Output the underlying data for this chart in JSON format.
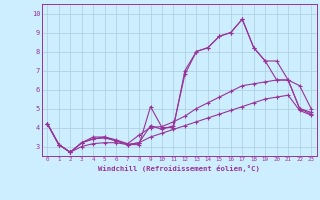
{
  "xlabel": "Windchill (Refroidissement éolien,°C)",
  "background_color": "#cceeff",
  "grid_color": "#aaccdd",
  "line_color": "#993399",
  "xlim": [
    -0.5,
    23.5
  ],
  "ylim": [
    2.5,
    10.5
  ],
  "xticks": [
    0,
    1,
    2,
    3,
    4,
    5,
    6,
    7,
    8,
    9,
    10,
    11,
    12,
    13,
    14,
    15,
    16,
    17,
    18,
    19,
    20,
    21,
    22,
    23
  ],
  "yticks": [
    3,
    4,
    5,
    6,
    7,
    8,
    9,
    10
  ],
  "series": [
    {
      "x": [
        0,
        1,
        2,
        3,
        4,
        5,
        6,
        7,
        8,
        9,
        10,
        11,
        12,
        13,
        14,
        15,
        16,
        17,
        18,
        19,
        20,
        21,
        22,
        23
      ],
      "y": [
        4.2,
        3.1,
        2.7,
        3.2,
        3.5,
        3.5,
        3.3,
        3.1,
        3.1,
        5.1,
        4.0,
        4.0,
        7.0,
        8.0,
        8.2,
        8.8,
        9.0,
        9.7,
        8.2,
        7.5,
        7.5,
        6.5,
        6.2,
        5.0
      ]
    },
    {
      "x": [
        0,
        1,
        2,
        3,
        4,
        5,
        6,
        7,
        8,
        9,
        10,
        11,
        12,
        13,
        14,
        15,
        16,
        17,
        18,
        19,
        20,
        21,
        22,
        23
      ],
      "y": [
        4.2,
        3.1,
        2.7,
        3.2,
        3.4,
        3.45,
        3.3,
        3.1,
        3.2,
        4.1,
        3.9,
        4.1,
        6.8,
        8.0,
        8.2,
        8.8,
        9.0,
        9.7,
        8.2,
        7.5,
        6.5,
        6.5,
        5.0,
        4.7
      ]
    },
    {
      "x": [
        0,
        1,
        2,
        3,
        4,
        5,
        6,
        7,
        8,
        9,
        10,
        11,
        12,
        13,
        14,
        15,
        16,
        17,
        18,
        19,
        20,
        21,
        22,
        23
      ],
      "y": [
        4.2,
        3.1,
        2.7,
        3.2,
        3.4,
        3.5,
        3.35,
        3.15,
        3.6,
        4.0,
        4.05,
        4.3,
        4.6,
        5.0,
        5.3,
        5.6,
        5.9,
        6.2,
        6.3,
        6.4,
        6.5,
        6.5,
        5.0,
        4.8
      ]
    },
    {
      "x": [
        0,
        1,
        2,
        3,
        4,
        5,
        6,
        7,
        8,
        9,
        10,
        11,
        12,
        13,
        14,
        15,
        16,
        17,
        18,
        19,
        20,
        21,
        22,
        23
      ],
      "y": [
        4.2,
        3.1,
        2.7,
        3.0,
        3.15,
        3.2,
        3.2,
        3.1,
        3.2,
        3.5,
        3.7,
        3.9,
        4.1,
        4.3,
        4.5,
        4.7,
        4.9,
        5.1,
        5.3,
        5.5,
        5.6,
        5.7,
        4.9,
        4.65
      ]
    }
  ]
}
